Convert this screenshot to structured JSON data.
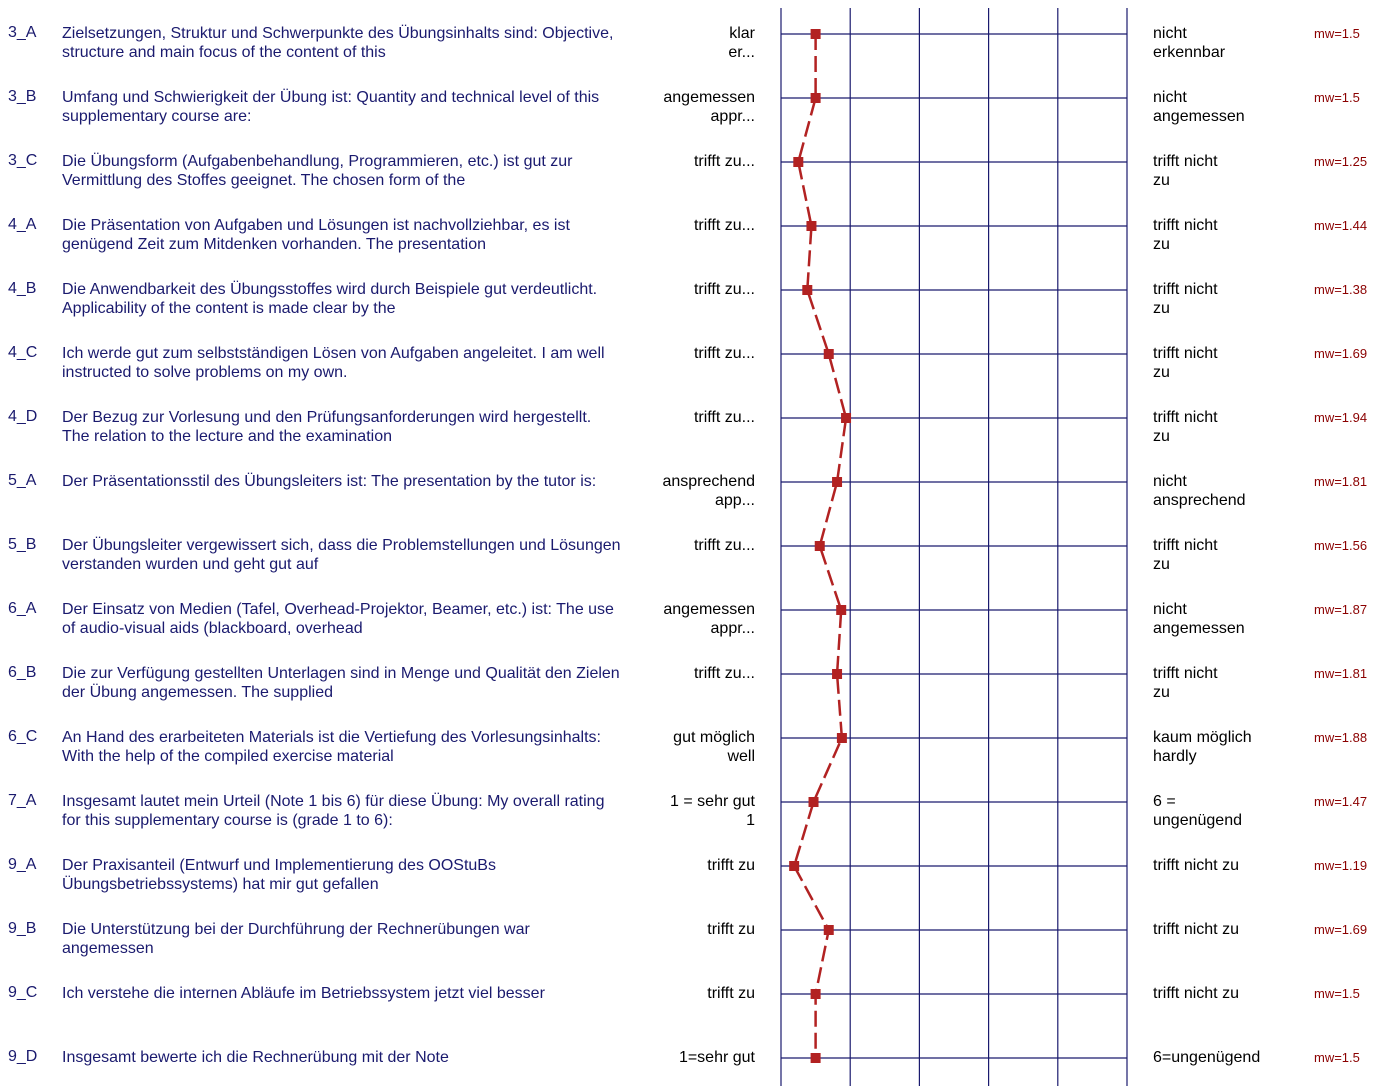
{
  "colors": {
    "text_question": "#1a1a6e",
    "grid": "#1a1a6e",
    "line": "#b22222",
    "marker": "#b22222",
    "mean_text": "#8b0000"
  },
  "chart_data": {
    "type": "line",
    "scale": {
      "min": 1,
      "max": 6,
      "ticks": [
        1,
        2,
        3,
        4,
        5,
        6
      ]
    },
    "orientation": "vertical profile",
    "items": [
      {
        "code": "3_A",
        "question": "Zielsetzungen, Struktur und Schwerpunkte des Übungsinhalts sind: Objective, structure and main focus of the content of this",
        "left": [
          "klar",
          "er..."
        ],
        "right": [
          "nicht",
          "erkennbar"
        ],
        "mean": 1.5,
        "mean_label": "mw=1.5"
      },
      {
        "code": "3_B",
        "question": "Umfang und Schwierigkeit der Übung ist: Quantity and technical level of this supplementary course are:",
        "left": [
          "angemessen",
          "appr..."
        ],
        "right": [
          "nicht",
          "angemessen"
        ],
        "mean": 1.5,
        "mean_label": "mw=1.5"
      },
      {
        "code": "3_C",
        "question": "Die Übungsform (Aufgabenbehandlung, Programmieren, etc.) ist gut zur Vermittlung des Stoffes geeignet. The chosen form of the",
        "left": [
          "trifft zu..."
        ],
        "right": [
          "trifft nicht",
          "zu"
        ],
        "mean": 1.25,
        "mean_label": "mw=1.25"
      },
      {
        "code": "4_A",
        "question": "Die Präsentation von Aufgaben und Lösungen ist nachvollziehbar, es ist genügend Zeit zum Mitdenken vorhanden. The presentation",
        "left": [
          "trifft zu..."
        ],
        "right": [
          "trifft nicht",
          "zu"
        ],
        "mean": 1.44,
        "mean_label": "mw=1.44"
      },
      {
        "code": "4_B",
        "question": "Die Anwendbarkeit des Übungsstoffes wird durch Beispiele gut verdeutlicht. Applicability of the content is made clear by the",
        "left": [
          "trifft zu..."
        ],
        "right": [
          "trifft nicht",
          "zu"
        ],
        "mean": 1.38,
        "mean_label": "mw=1.38"
      },
      {
        "code": "4_C",
        "question": "Ich werde gut zum selbstständigen Lösen von Aufgaben angeleitet. I am well instructed to solve problems on my own.",
        "left": [
          "trifft zu..."
        ],
        "right": [
          "trifft nicht",
          "zu"
        ],
        "mean": 1.69,
        "mean_label": "mw=1.69"
      },
      {
        "code": "4_D",
        "question": "Der Bezug zur Vorlesung und den Prüfungsanforderungen wird hergestellt. The relation to the lecture and the examination",
        "left": [
          "trifft zu..."
        ],
        "right": [
          "trifft nicht",
          "zu"
        ],
        "mean": 1.94,
        "mean_label": "mw=1.94"
      },
      {
        "code": "5_A",
        "question": "Der Präsentationsstil des Übungsleiters ist: The presentation by the tutor is:",
        "left": [
          "ansprechend",
          "app..."
        ],
        "right": [
          "nicht",
          "ansprechend"
        ],
        "mean": 1.81,
        "mean_label": "mw=1.81"
      },
      {
        "code": "5_B",
        "question": "Der Übungsleiter vergewissert sich, dass die Problemstellungen und Lösungen verstanden wurden und geht gut auf",
        "left": [
          "trifft zu..."
        ],
        "right": [
          "trifft nicht",
          "zu"
        ],
        "mean": 1.56,
        "mean_label": "mw=1.56"
      },
      {
        "code": "6_A",
        "question": "Der Einsatz von Medien (Tafel, Overhead-Projektor, Beamer, etc.) ist: The use of audio-visual aids (blackboard, overhead",
        "left": [
          "angemessen",
          "appr..."
        ],
        "right": [
          "nicht",
          "angemessen"
        ],
        "mean": 1.87,
        "mean_label": "mw=1.87"
      },
      {
        "code": "6_B",
        "question": "Die zur Verfügung gestellten Unterlagen sind in Menge und Qualität den Zielen der Übung angemessen. The supplied",
        "left": [
          "trifft zu..."
        ],
        "right": [
          "trifft nicht",
          "zu"
        ],
        "mean": 1.81,
        "mean_label": "mw=1.81"
      },
      {
        "code": "6_C",
        "question": "An Hand des erarbeiteten Materials ist die Vertiefung des Vorlesungsinhalts: With the help of the compiled exercise material",
        "left": [
          "gut möglich",
          "well"
        ],
        "right": [
          "kaum möglich",
          "hardly"
        ],
        "mean": 1.88,
        "mean_label": "mw=1.88"
      },
      {
        "code": "7_A",
        "question": "Insgesamt lautet mein Urteil (Note 1 bis 6) für diese Übung: My overall rating for this supplementary course is (grade 1 to 6):",
        "left": [
          "1 = sehr gut",
          "1"
        ],
        "right": [
          "6 =",
          "ungenügend"
        ],
        "mean": 1.47,
        "mean_label": "mw=1.47"
      },
      {
        "code": "9_A",
        "question": "Der Praxisanteil (Entwurf und Implementierung des OOStuBs Übungsbetriebssystems) hat mir gut gefallen",
        "left": [
          "trifft zu"
        ],
        "right": [
          "trifft nicht zu"
        ],
        "mean": 1.19,
        "mean_label": "mw=1.19"
      },
      {
        "code": "9_B",
        "question": "Die Unterstützung bei der Durchführung der Rechnerübungen war angemessen",
        "left": [
          "trifft zu"
        ],
        "right": [
          "trifft nicht zu"
        ],
        "mean": 1.69,
        "mean_label": "mw=1.69"
      },
      {
        "code": "9_C",
        "question": "Ich verstehe die internen Abläufe im Betriebssystem jetzt viel besser",
        "left": [
          "trifft zu"
        ],
        "right": [
          "trifft nicht zu"
        ],
        "mean": 1.5,
        "mean_label": "mw=1.5"
      },
      {
        "code": "9_D",
        "question": "Insgesamt bewerte ich die Rechnerübung mit der Note",
        "left": [
          "1=sehr gut"
        ],
        "right": [
          "6=ungenügend"
        ],
        "mean": 1.5,
        "mean_label": "mw=1.5"
      }
    ]
  }
}
